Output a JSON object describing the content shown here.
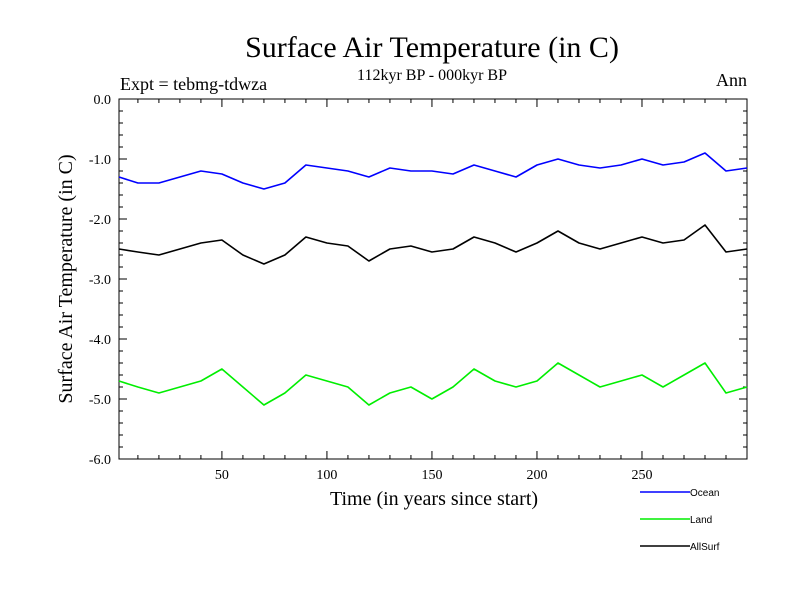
{
  "chart_data": {
    "type": "line",
    "title": "Surface Air Temperature (in C)",
    "subtitle": "112kyr BP - 000kyr BP",
    "left_annotation": "Expt = tebmg-tdwza",
    "right_annotation": "Ann",
    "xlabel": "Time (in years since start)",
    "ylabel": "Surface Air Temperature (in C)",
    "xlim": [
      1,
      300
    ],
    "ylim": [
      -6.0,
      0.0
    ],
    "x_ticks": [
      50,
      100,
      150,
      200,
      250
    ],
    "y_ticks": [
      0.0,
      -1.0,
      -2.0,
      -3.0,
      -4.0,
      -5.0,
      -6.0
    ],
    "y_tick_labels": [
      "0.0",
      "-1.0",
      "-2.0",
      "-3.0",
      "-4.0",
      "-5.0",
      "-6.0"
    ],
    "series": [
      {
        "name": "Ocean",
        "color": "#0000ff",
        "x": [
          1,
          10,
          20,
          30,
          40,
          50,
          60,
          70,
          80,
          90,
          100,
          110,
          120,
          130,
          140,
          150,
          160,
          170,
          180,
          190,
          200,
          210,
          220,
          230,
          240,
          250,
          260,
          270,
          280,
          290,
          300
        ],
        "values": [
          -1.3,
          -1.4,
          -1.4,
          -1.3,
          -1.2,
          -1.25,
          -1.4,
          -1.5,
          -1.4,
          -1.1,
          -1.15,
          -1.2,
          -1.3,
          -1.15,
          -1.2,
          -1.2,
          -1.25,
          -1.1,
          -1.2,
          -1.3,
          -1.1,
          -1.0,
          -1.1,
          -1.15,
          -1.1,
          -1.0,
          -1.1,
          -1.05,
          -0.9,
          -1.2,
          -1.15
        ]
      },
      {
        "name": "Land",
        "color": "#00ee00",
        "x": [
          1,
          10,
          20,
          30,
          40,
          50,
          60,
          70,
          80,
          90,
          100,
          110,
          120,
          130,
          140,
          150,
          160,
          170,
          180,
          190,
          200,
          210,
          220,
          230,
          240,
          250,
          260,
          270,
          280,
          290,
          300
        ],
        "values": [
          -4.7,
          -4.8,
          -4.9,
          -4.8,
          -4.7,
          -4.5,
          -4.8,
          -5.1,
          -4.9,
          -4.6,
          -4.7,
          -4.8,
          -5.1,
          -4.9,
          -4.8,
          -5.0,
          -4.8,
          -4.5,
          -4.7,
          -4.8,
          -4.7,
          -4.4,
          -4.6,
          -4.8,
          -4.7,
          -4.6,
          -4.8,
          -4.6,
          -4.4,
          -4.9,
          -4.8
        ]
      },
      {
        "name": "AllSurf",
        "color": "#000000",
        "x": [
          1,
          10,
          20,
          30,
          40,
          50,
          60,
          70,
          80,
          90,
          100,
          110,
          120,
          130,
          140,
          150,
          160,
          170,
          180,
          190,
          200,
          210,
          220,
          230,
          240,
          250,
          260,
          270,
          280,
          290,
          300
        ],
        "values": [
          -2.5,
          -2.55,
          -2.6,
          -2.5,
          -2.4,
          -2.35,
          -2.6,
          -2.75,
          -2.6,
          -2.3,
          -2.4,
          -2.45,
          -2.7,
          -2.5,
          -2.45,
          -2.55,
          -2.5,
          -2.3,
          -2.4,
          -2.55,
          -2.4,
          -2.2,
          -2.4,
          -2.5,
          -2.4,
          -2.3,
          -2.4,
          -2.35,
          -2.1,
          -2.55,
          -2.5
        ]
      }
    ],
    "legend": [
      {
        "label": "Ocean",
        "color": "#0000ff"
      },
      {
        "label": "Land",
        "color": "#00ee00"
      },
      {
        "label": "AllSurf",
        "color": "#000000"
      }
    ]
  }
}
